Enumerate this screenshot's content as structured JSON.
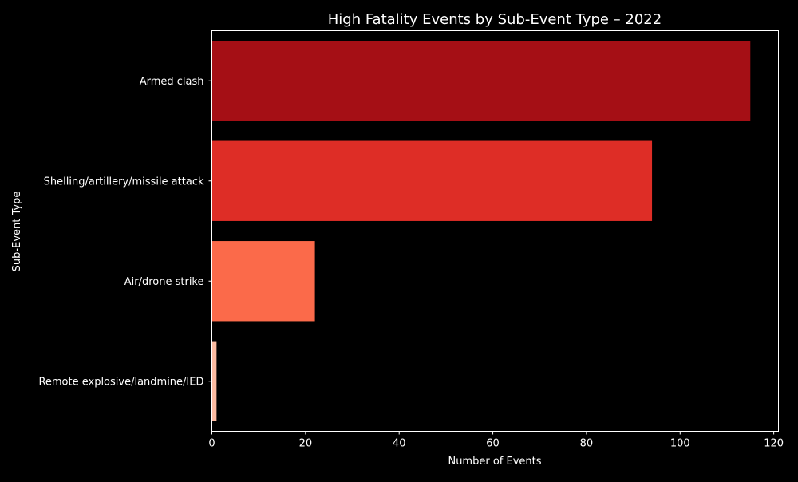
{
  "chart_data": {
    "type": "bar",
    "orientation": "horizontal",
    "title": "High Fatality Events by Sub-Event Type – 2022",
    "xlabel": "Number of Events",
    "ylabel": "Sub-Event Type",
    "xlim": [
      0,
      121
    ],
    "xticks": [
      0,
      20,
      40,
      60,
      80,
      100,
      120
    ],
    "grid": false,
    "background": "#000000",
    "categories": [
      "Armed clash",
      "Shelling/artillery/missile attack",
      "Air/drone strike",
      "Remote explosive/landmine/IED"
    ],
    "values": [
      115,
      94,
      22,
      1
    ],
    "colors": [
      "#a50f15",
      "#de2d26",
      "#fb6a4a",
      "#fcbba1"
    ]
  }
}
